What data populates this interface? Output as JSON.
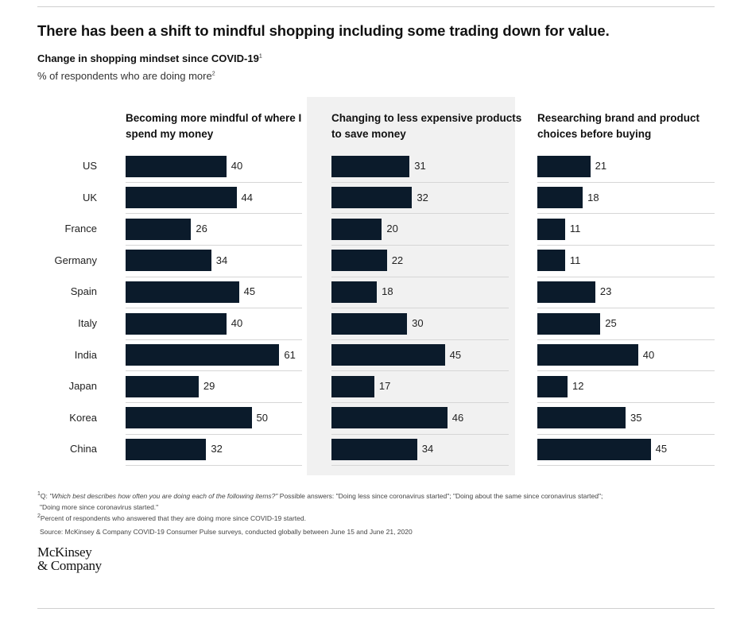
{
  "title": "There has been a shift to mindful shopping including some trading down for value.",
  "subtitle": "Change in shopping mindset since COVID-19",
  "subtitle_note": "1",
  "unit": "% of respondents who are doing more",
  "unit_note": "2",
  "chart_data": {
    "type": "bar",
    "orientation": "horizontal",
    "categories": [
      "US",
      "UK",
      "France",
      "Germany",
      "Spain",
      "Italy",
      "India",
      "Japan",
      "Korea",
      "China"
    ],
    "series": [
      {
        "name": "Becoming more mindful of where I spend my money",
        "values": [
          40,
          44,
          26,
          34,
          45,
          40,
          61,
          29,
          50,
          32
        ]
      },
      {
        "name": "Changing to less expensive products to save money",
        "values": [
          31,
          32,
          20,
          22,
          18,
          30,
          45,
          17,
          46,
          34
        ]
      },
      {
        "name": "Researching brand and product choices before buying",
        "values": [
          21,
          18,
          11,
          11,
          23,
          25,
          40,
          12,
          35,
          45
        ]
      }
    ],
    "xlim": [
      0,
      70
    ],
    "data_labels": true,
    "highlighted_panel": 1,
    "bar_color": "#0b1b2b",
    "highlight_bg": "#f1f1f1"
  },
  "footnotes": {
    "q_prefix": "Q: ",
    "q_text": "\"Which best describes how often you are doing each of the following items?\"",
    "q_answers": " Possible answers: \"Doing less since coronavirus started\"; \"Doing about the same since coronavirus started\";",
    "q_answers_2": "\"Doing more since coronavirus started.\"",
    "note2": "Percent of respondents who answered that they are doing more since COVID-19 started.",
    "source": "Source: McKinsey & Company COVID-19 Consumer Pulse surveys, conducted globally between June 15 and June 21, 2020"
  },
  "logo": {
    "line1": "McKinsey",
    "line2": "& Company"
  }
}
